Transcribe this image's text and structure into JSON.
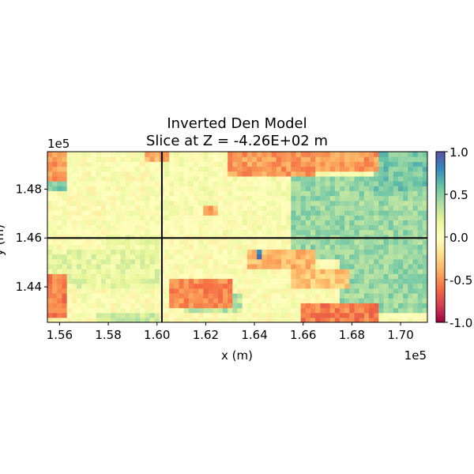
{
  "chart_data": {
    "type": "heatmap",
    "title": "Inverted Den Model",
    "subtitle": "Slice at Z = -4.26E+02 m",
    "xlabel": "x (m)",
    "ylabel": "y (m)",
    "x_offset_label": "1e5",
    "y_offset_label": "1e5",
    "xlim": [
      1.555,
      1.711
    ],
    "ylim": [
      1.4255,
      1.4953
    ],
    "x_ticks": [
      {
        "value": 1.56,
        "label": "1.56"
      },
      {
        "value": 1.58,
        "label": "1.58"
      },
      {
        "value": 1.6,
        "label": "1.60"
      },
      {
        "value": 1.62,
        "label": "1.62"
      },
      {
        "value": 1.64,
        "label": "1.64"
      },
      {
        "value": 1.66,
        "label": "1.66"
      },
      {
        "value": 1.68,
        "label": "1.68"
      },
      {
        "value": 1.7,
        "label": "1.70"
      }
    ],
    "y_ticks": [
      {
        "value": 1.44,
        "label": "1.44"
      },
      {
        "value": 1.46,
        "label": "1.46"
      },
      {
        "value": 1.48,
        "label": "1.48"
      }
    ],
    "crosshair": {
      "x": 1.602,
      "y": 1.46
    },
    "colorbar": {
      "min": -1.0,
      "max": 1.0,
      "colormap": "Spectral",
      "ticks": [
        {
          "value": 1.0,
          "label": "1.0"
        },
        {
          "value": 0.5,
          "label": "0.5"
        },
        {
          "value": 0.0,
          "label": "0.0"
        },
        {
          "value": -0.5,
          "label": "-0.5"
        },
        {
          "value": -1.0,
          "label": "-1.0"
        }
      ]
    },
    "grid_shape": [
      35,
      78
    ],
    "field_regions": [
      {
        "x": [
          1.655,
          1.711
        ],
        "y": [
          1.4505,
          1.486
        ],
        "value": 0.45
      },
      {
        "x": [
          1.69,
          1.711
        ],
        "y": [
          1.479,
          1.4953
        ],
        "value": 0.55
      },
      {
        "x": [
          1.675,
          1.711
        ],
        "y": [
          1.429,
          1.458
        ],
        "value": 0.45
      },
      {
        "x": [
          1.61,
          1.635
        ],
        "y": [
          1.429,
          1.438
        ],
        "value": 0.35
      },
      {
        "x": [
          1.555,
          1.6
        ],
        "y": [
          1.44,
          1.456
        ],
        "value": 0.18
      },
      {
        "x": [
          1.58,
          1.6
        ],
        "y": [
          1.456,
          1.462
        ],
        "value": 0.15
      },
      {
        "x": [
          1.6,
          1.655
        ],
        "y": [
          1.462,
          1.4953
        ],
        "value": 0.05
      },
      {
        "x": [
          1.63,
          1.665
        ],
        "y": [
          1.486,
          1.4953
        ],
        "value": -0.45
      },
      {
        "x": [
          1.665,
          1.69
        ],
        "y": [
          1.488,
          1.4953
        ],
        "value": -0.45
      },
      {
        "x": [
          1.638,
          1.665
        ],
        "y": [
          1.448,
          1.455
        ],
        "value": -0.35
      },
      {
        "x": [
          1.66,
          1.69
        ],
        "y": [
          1.4255,
          1.433
        ],
        "value": -0.55
      },
      {
        "x": [
          1.555,
          1.562
        ],
        "y": [
          1.428,
          1.445
        ],
        "value": -0.55
      },
      {
        "x": [
          1.605,
          1.63
        ],
        "y": [
          1.432,
          1.443
        ],
        "value": -0.5
      },
      {
        "x": [
          1.655,
          1.68
        ],
        "y": [
          1.44,
          1.448
        ],
        "value": -0.3
      },
      {
        "x": [
          1.555,
          1.562
        ],
        "y": [
          1.479,
          1.486
        ],
        "value": 0.55
      },
      {
        "x": [
          1.555,
          1.562
        ],
        "y": [
          1.484,
          1.4953
        ],
        "value": -0.45
      },
      {
        "x": [
          1.595,
          1.605
        ],
        "y": [
          1.491,
          1.4953
        ],
        "value": -0.4
      },
      {
        "x": [
          1.575,
          1.6
        ],
        "y": [
          1.4255,
          1.429
        ],
        "value": 0.3
      },
      {
        "x": [
          1.618,
          1.625
        ],
        "y": [
          1.47,
          1.474
        ],
        "value": -0.4
      },
      {
        "x": [
          1.641,
          1.644
        ],
        "y": [
          1.452,
          1.4545
        ],
        "value": 0.9
      }
    ],
    "base_value": 0.02
  }
}
